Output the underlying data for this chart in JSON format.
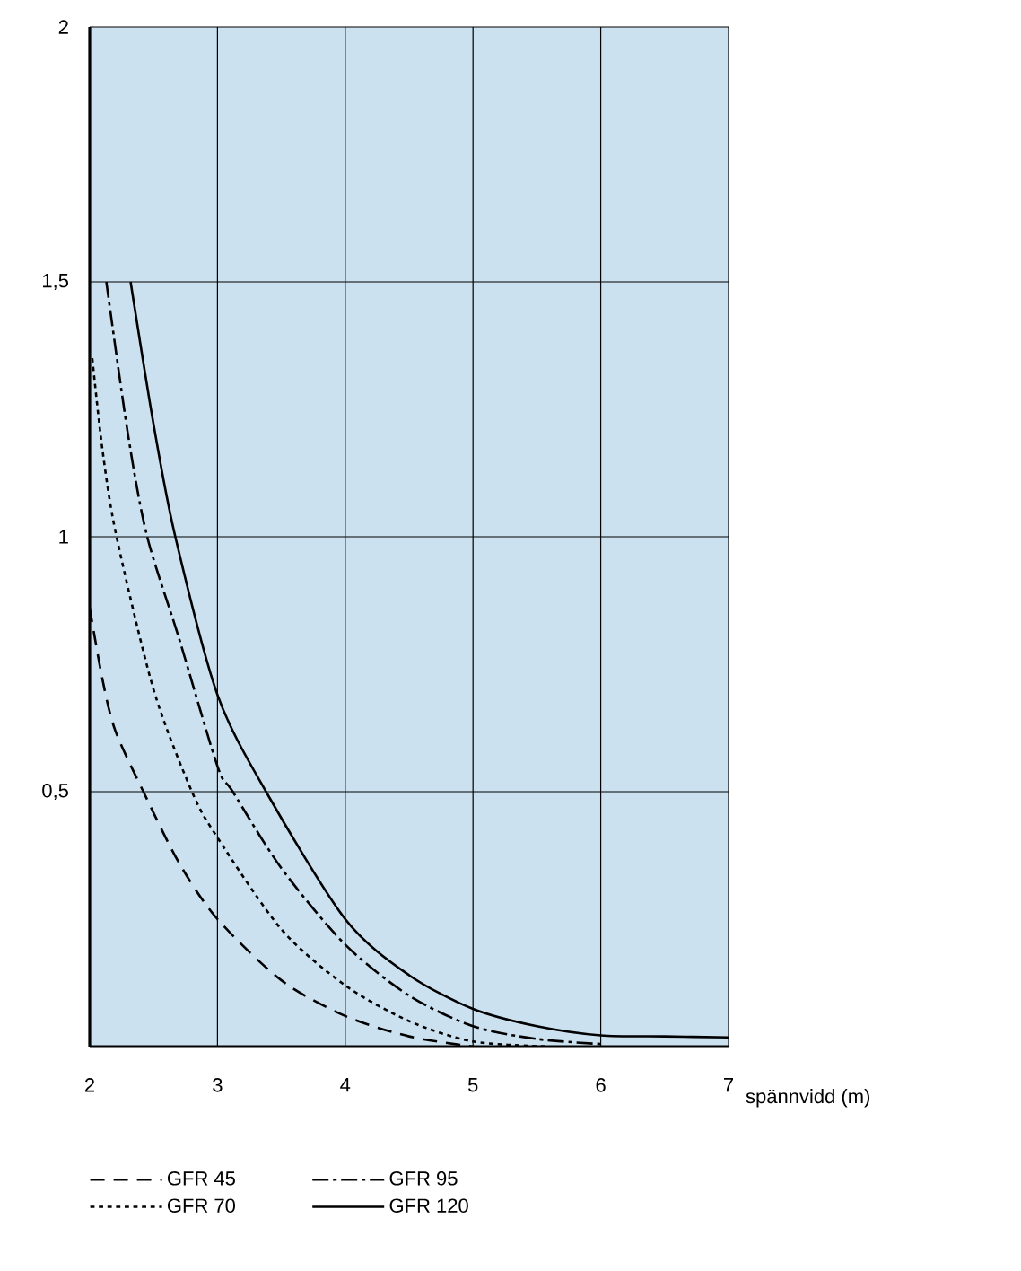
{
  "chart_data": {
    "type": "line",
    "xlabel": "spännvidd (m)",
    "xlim": [
      2,
      7
    ],
    "xticks": [
      2,
      3,
      4,
      5,
      6,
      7
    ],
    "ylim": [
      0,
      2
    ],
    "yticks": [
      {
        "value": 0.5,
        "label": "0,5"
      },
      1,
      {
        "value": 1.5,
        "label": "1,5"
      },
      2
    ],
    "grid": true,
    "legend": "bottom",
    "series": [
      {
        "name": "GFR 45",
        "color": "#000000",
        "line_style": "dashed",
        "x": [
          2.0,
          2.1,
          2.2,
          2.42,
          2.7,
          3,
          3.5,
          4,
          4.5,
          5
        ],
        "values": [
          0.86,
          0.72,
          0.62,
          0.5,
          0.36,
          0.25,
          0.13,
          0.06,
          0.02,
          0
        ]
      },
      {
        "name": "GFR 70",
        "color": "#000000",
        "line_style": "dotted",
        "x": [
          2.02,
          2.1,
          2.21,
          2.5,
          2.8,
          3,
          3.5,
          4,
          4.5,
          5,
          5.6
        ],
        "values": [
          1.35,
          1.17,
          1.0,
          0.7,
          0.5,
          0.41,
          0.23,
          0.12,
          0.05,
          0.01,
          0
        ]
      },
      {
        "name": "GFR 95",
        "color": "#000000",
        "line_style": "dashdot",
        "x": [
          2.13,
          2.3,
          2.45,
          2.7,
          3,
          3.12,
          3.5,
          4,
          4.5,
          5,
          5.5,
          6
        ],
        "values": [
          1.5,
          1.2,
          1.0,
          0.8,
          0.55,
          0.5,
          0.35,
          0.2,
          0.1,
          0.04,
          0.015,
          0.005
        ]
      },
      {
        "name": "GFR 120",
        "color": "#000000",
        "line_style": "solid",
        "x": [
          2.32,
          2.5,
          2.67,
          3,
          3.38,
          4,
          4.5,
          5,
          5.5,
          6,
          6.5,
          7
        ],
        "values": [
          1.5,
          1.22,
          1.0,
          0.69,
          0.5,
          0.25,
          0.14,
          0.074,
          0.04,
          0.022,
          0.02,
          0.018
        ]
      }
    ]
  }
}
